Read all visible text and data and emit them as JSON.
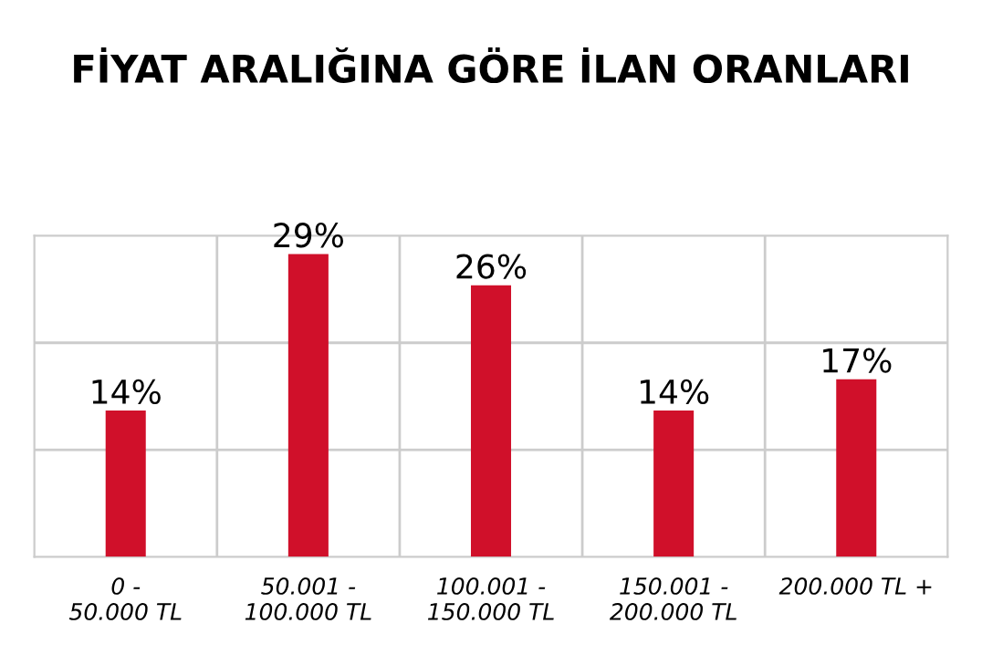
{
  "chart_data": {
    "type": "bar",
    "title": "FİYAT ARALIĞINA GÖRE İLAN ORANLARI",
    "categories": [
      "0 -\n50.000 TL",
      "50.001 -\n100.000 TL",
      "100.001 -\n150.000 TL",
      "150.001 -\n200.000 TL",
      "200.000 TL +"
    ],
    "values": [
      14,
      29,
      26,
      14,
      17
    ],
    "value_labels": [
      "14%",
      "29%",
      "26%",
      "14%",
      "17%"
    ],
    "color": "#d0102a",
    "grid": true
  }
}
